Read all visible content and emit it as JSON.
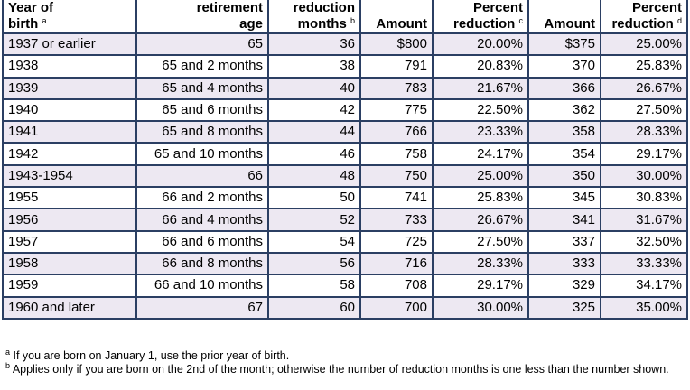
{
  "table": {
    "headers": [
      {
        "line1": "Year of",
        "line2": "birth",
        "mark": "a"
      },
      {
        "line1": "retirement",
        "line2": "age",
        "mark": ""
      },
      {
        "line1": "reduction",
        "line2": "months",
        "mark": "b"
      },
      {
        "line1": "",
        "line2": "Amount",
        "mark": ""
      },
      {
        "line1": "Percent",
        "line2": "reduction",
        "mark": "c"
      },
      {
        "line1": "",
        "line2": "Amount",
        "mark": ""
      },
      {
        "line1": "Percent",
        "line2": "reduction",
        "mark": "d"
      }
    ],
    "rows": [
      [
        "1937 or earlier",
        "65",
        "36",
        "$800",
        "20.00%",
        "$375",
        "25.00%"
      ],
      [
        "1938",
        "65 and 2 months",
        "38",
        "791",
        "20.83%",
        "370",
        "25.83%"
      ],
      [
        "1939",
        "65 and 4 months",
        "40",
        "783",
        "21.67%",
        "366",
        "26.67%"
      ],
      [
        "1940",
        "65 and 6 months",
        "42",
        "775",
        "22.50%",
        "362",
        "27.50%"
      ],
      [
        "1941",
        "65 and 8 months",
        "44",
        "766",
        "23.33%",
        "358",
        "28.33%"
      ],
      [
        "1942",
        "65 and 10 months",
        "46",
        "758",
        "24.17%",
        "354",
        "29.17%"
      ],
      [
        "1943-1954",
        "66",
        "48",
        "750",
        "25.00%",
        "350",
        "30.00%"
      ],
      [
        "1955",
        "66 and 2 months",
        "50",
        "741",
        "25.83%",
        "345",
        "30.83%"
      ],
      [
        "1956",
        "66 and 4 months",
        "52",
        "733",
        "26.67%",
        "341",
        "31.67%"
      ],
      [
        "1957",
        "66 and 6 months",
        "54",
        "725",
        "27.50%",
        "337",
        "32.50%"
      ],
      [
        "1958",
        "66 and 8 months",
        "56",
        "716",
        "28.33%",
        "333",
        "33.33%"
      ],
      [
        "1959",
        "66 and 10 months",
        "58",
        "708",
        "29.17%",
        "329",
        "34.17%"
      ],
      [
        "1960 and later",
        "67",
        "60",
        "700",
        "30.00%",
        "325",
        "35.00%"
      ]
    ]
  },
  "footnotes": [
    {
      "mark": "a",
      "text": "If you are born on January 1, use the prior year of birth."
    },
    {
      "mark": "b",
      "text": "Applies only if you are born on the 2nd of the month; otherwise the number of reduction months is one less than the number shown."
    }
  ],
  "colors": {
    "border": "#2b3f63",
    "shade": "#ede8f2"
  }
}
